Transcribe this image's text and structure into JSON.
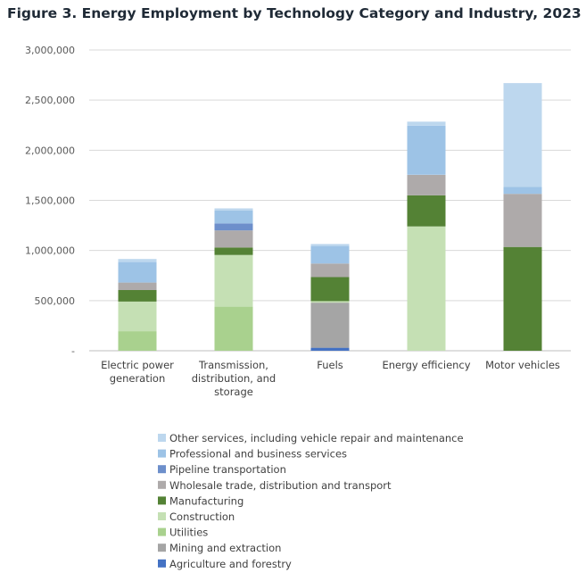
{
  "chart_data": {
    "type": "bar",
    "stacked": true,
    "title": "Figure 3. Energy Employment by Technology Category and Industry, 2023",
    "xlabel": "",
    "ylabel": "",
    "ylim": [
      0,
      3000000
    ],
    "yticks": [
      0,
      500000,
      1000000,
      1500000,
      2000000,
      2500000,
      3000000
    ],
    "ytick_labels": [
      "-",
      "500,000",
      "1,000,000",
      "1,500,000",
      "2,000,000",
      "2,500,000",
      "3,000,000"
    ],
    "grid": true,
    "legend_position": "bottom",
    "categories": [
      [
        "Electric power",
        "generation"
      ],
      [
        "Transmission,",
        "distribution, and",
        "storage"
      ],
      [
        "Fuels"
      ],
      [
        "Energy efficiency"
      ],
      [
        "Motor vehicles"
      ]
    ],
    "series": [
      {
        "name": "Agriculture and forestry",
        "color": "#4472c4",
        "values": [
          0,
          0,
          30000,
          0,
          0
        ]
      },
      {
        "name": "Mining and extraction",
        "color": "#a5a5a5",
        "values": [
          0,
          0,
          450000,
          0,
          0
        ]
      },
      {
        "name": "Utilities",
        "color": "#a9d18e",
        "values": [
          195000,
          440000,
          0,
          0,
          0
        ]
      },
      {
        "name": "Construction",
        "color": "#c5e0b4",
        "values": [
          295000,
          515000,
          15000,
          1240000,
          0
        ]
      },
      {
        "name": "Manufacturing",
        "color": "#548235",
        "values": [
          115000,
          75000,
          240000,
          310000,
          1035000
        ]
      },
      {
        "name": "Wholesale trade, distribution and transport",
        "color": "#aeaaaa",
        "values": [
          75000,
          170000,
          135000,
          205000,
          530000
        ]
      },
      {
        "name": "Pipeline transportation",
        "color": "#6d8fcb",
        "values": [
          0,
          70000,
          0,
          0,
          0
        ]
      },
      {
        "name": "Professional and business services",
        "color": "#9dc3e6",
        "values": [
          205000,
          130000,
          175000,
          490000,
          70000
        ]
      },
      {
        "name": "Other services, including vehicle repair and maintenance",
        "color": "#bdd7ee",
        "values": [
          30000,
          20000,
          20000,
          40000,
          1035000
        ]
      }
    ]
  }
}
